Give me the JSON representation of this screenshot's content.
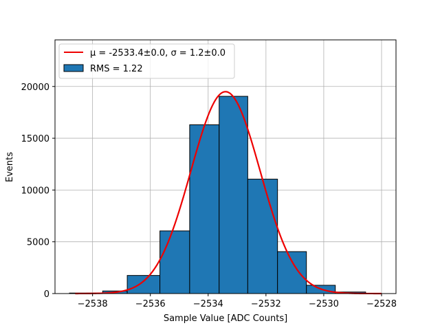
{
  "chart_data": {
    "type": "bar",
    "xlabel": "Sample Value [ADC Counts]",
    "ylabel": "Events",
    "xlim": [
      -2539.3,
      -2527.5
    ],
    "ylim": [
      0,
      24500
    ],
    "xticks": [
      -2538,
      -2536,
      -2534,
      -2532,
      -2530,
      -2528
    ],
    "xtick_labels": [
      "−2538",
      "−2536",
      "−2534",
      "−2532",
      "−2530",
      "−2528"
    ],
    "yticks": [
      0,
      5000,
      10000,
      15000,
      20000
    ],
    "ytick_labels": [
      "0",
      "5000",
      "10000",
      "15000",
      "20000"
    ],
    "grid": true,
    "legend_position": "top-left",
    "bins": [
      {
        "x0": -2538.8,
        "x1": -2537.65,
        "value": 50
      },
      {
        "x0": -2537.65,
        "x1": -2536.8,
        "value": 250
      },
      {
        "x0": -2536.8,
        "x1": -2535.67,
        "value": 1750
      },
      {
        "x0": -2535.67,
        "x1": -2534.64,
        "value": 6050
      },
      {
        "x0": -2534.64,
        "x1": -2533.62,
        "value": 16300
      },
      {
        "x0": -2533.62,
        "x1": -2532.63,
        "value": 19050
      },
      {
        "x0": -2532.63,
        "x1": -2531.6,
        "value": 11050
      },
      {
        "x0": -2531.6,
        "x1": -2530.6,
        "value": 4050
      },
      {
        "x0": -2530.6,
        "x1": -2529.6,
        "value": 800
      },
      {
        "x0": -2529.6,
        "x1": -2528.55,
        "value": 150
      }
    ],
    "fit": {
      "mu": -2533.4,
      "sigma": 1.2,
      "amplitude": 19500,
      "x_start": -2538.6,
      "x_end": -2528.0
    },
    "legend": [
      {
        "label": "μ = -2533.4±0.0, σ = 1.2±0.0",
        "kind": "line"
      },
      {
        "label": "RMS = 1.22",
        "kind": "patch"
      }
    ],
    "colors": {
      "bar_fill": "#1f77b4",
      "bar_edge": "#000000",
      "fit_line": "#ee0000",
      "grid": "#b0b0b0"
    }
  }
}
